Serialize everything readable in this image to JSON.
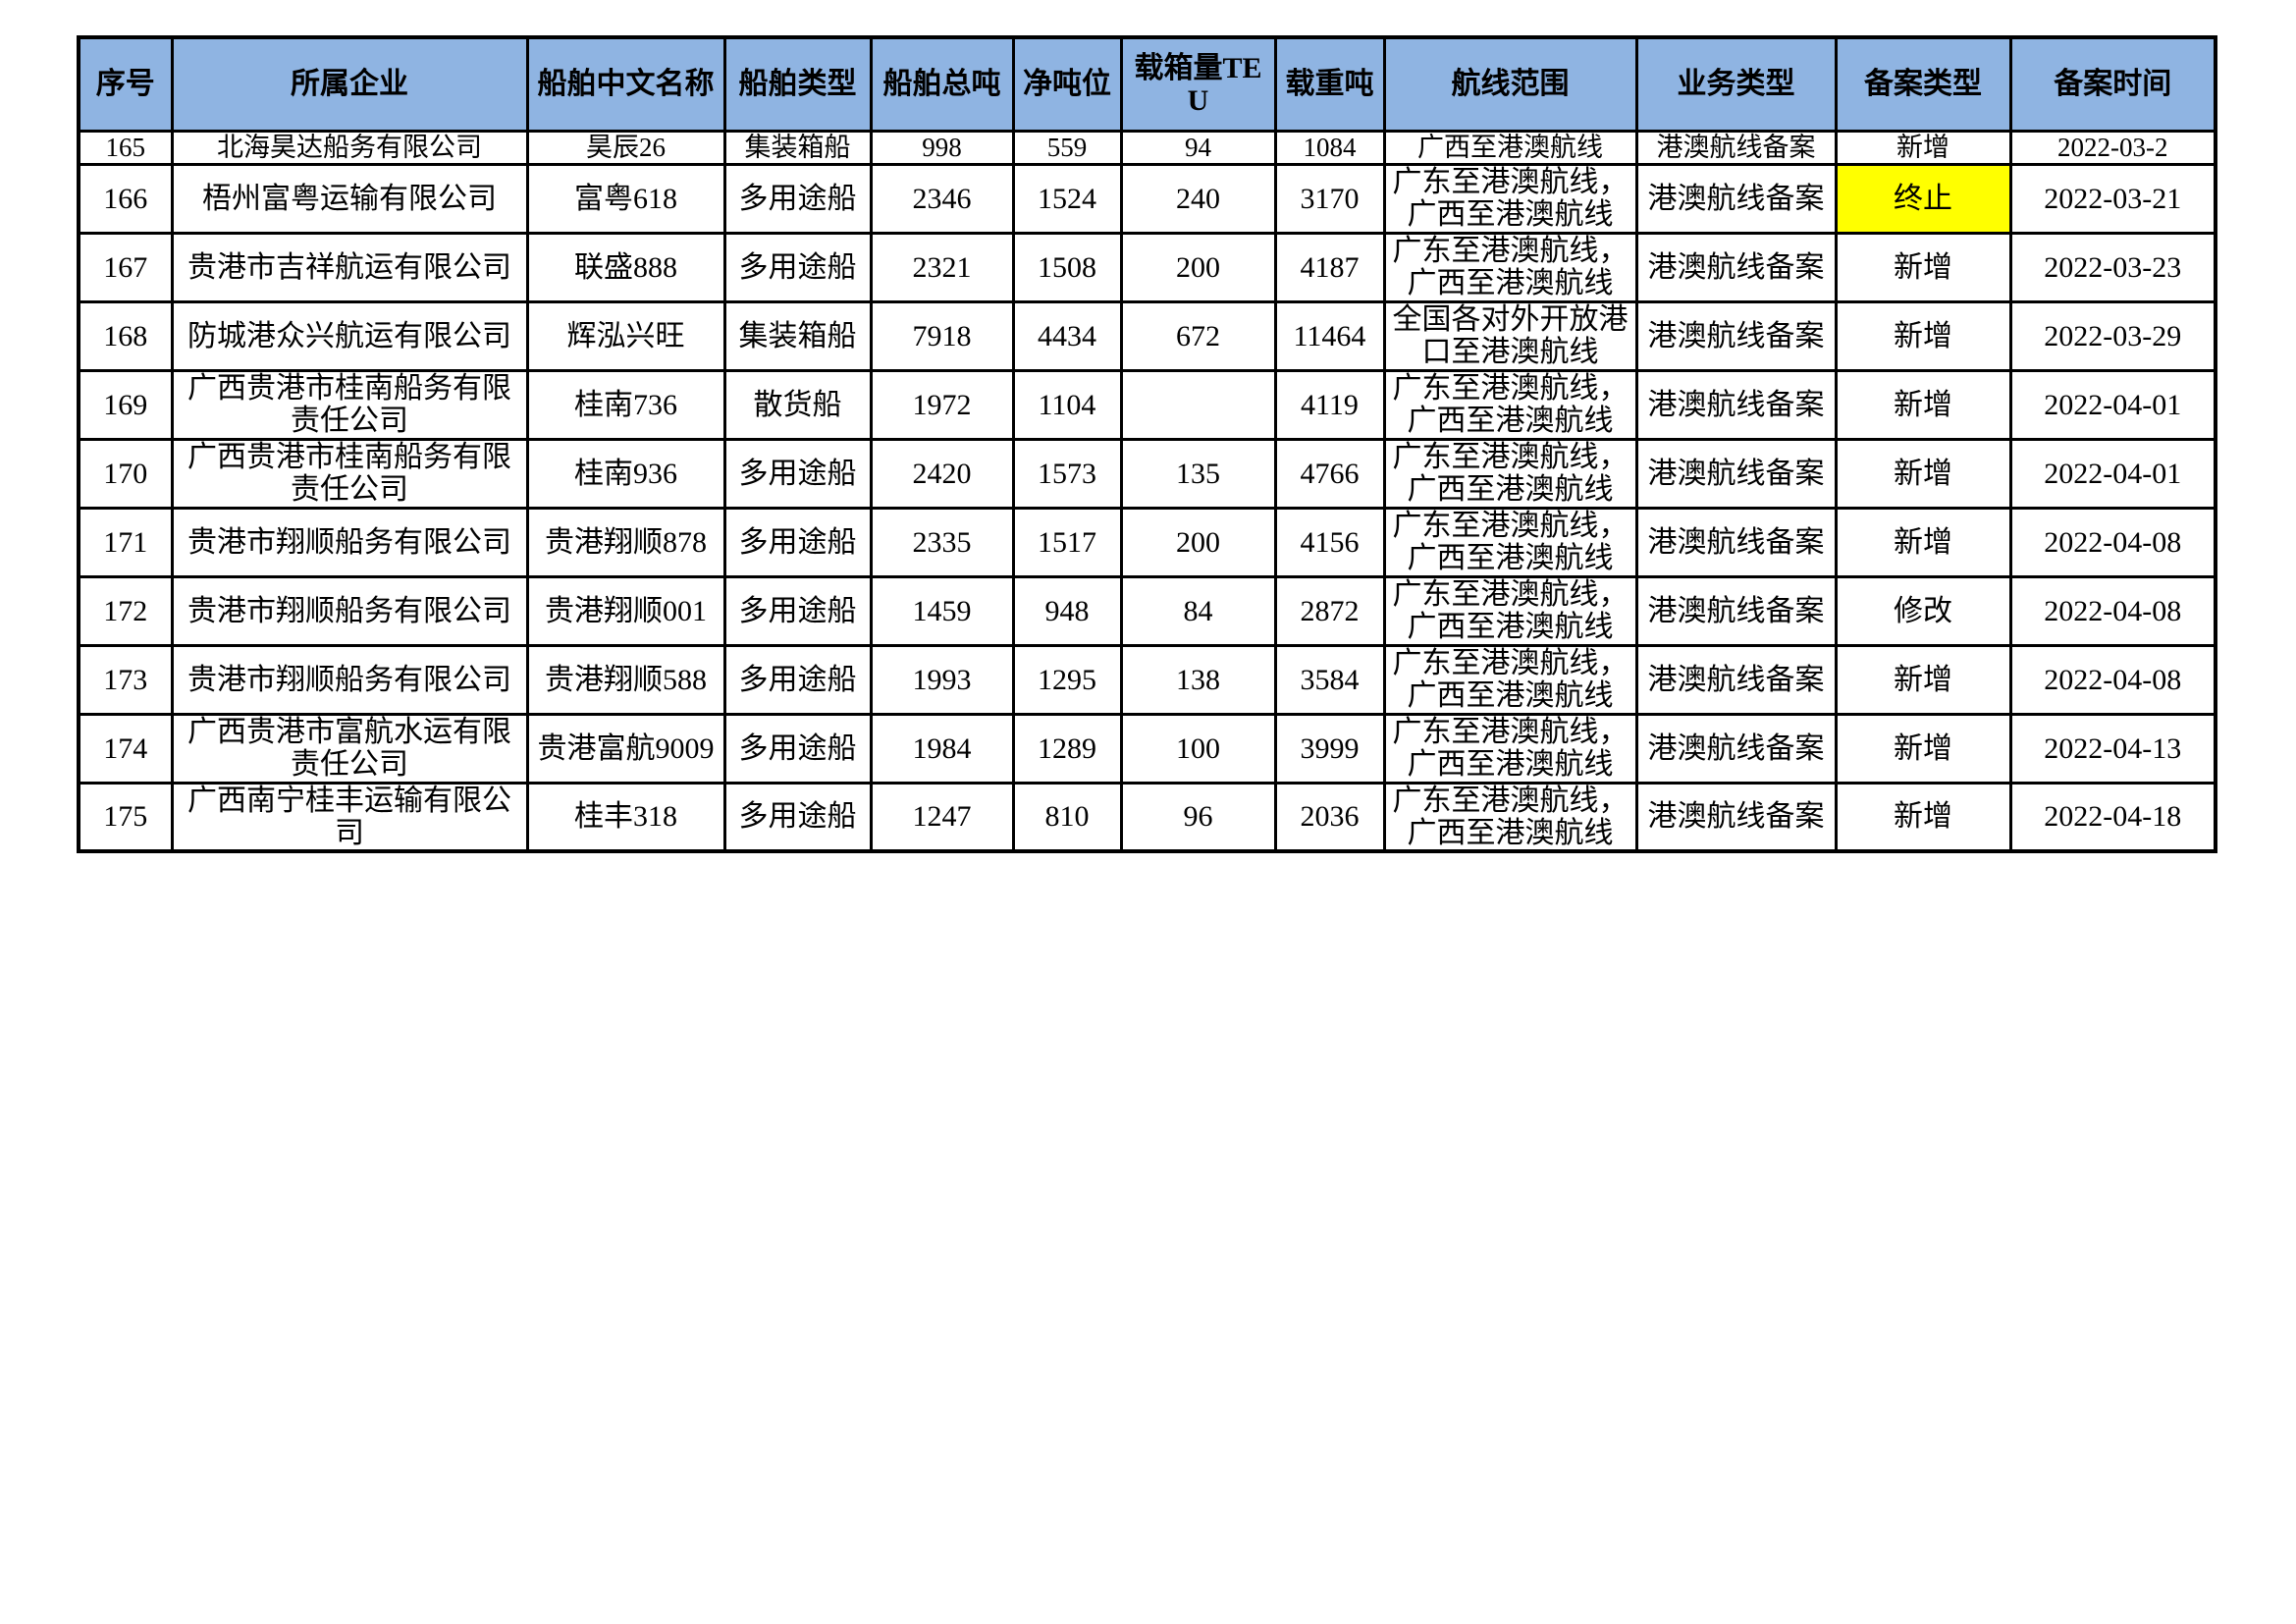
{
  "colors": {
    "header_bg": "#8FB4E2",
    "highlight_bg": "#FFFF00",
    "border": "#000000",
    "text": "#000000"
  },
  "table": {
    "headers": [
      "序号",
      "所属企业",
      "船舶中文名称",
      "船舶类型",
      "船舶总吨",
      "净吨位",
      "载箱量TEU",
      "载重吨",
      "航线范围",
      "业务类型",
      "备案类型",
      "备案时间"
    ],
    "rows": [
      {
        "seq": "165",
        "company": "北海昊达船务有限公司",
        "ship_name": "昊辰26",
        "ship_type": "集装箱船",
        "gross_tonnage": "998",
        "net_tonnage": "559",
        "teu": "94",
        "dwt": "1084",
        "route": "广西至港澳航线",
        "business_type": "港澳航线备案",
        "filing_type": "新增",
        "filing_type_highlight": false,
        "filing_date": "2022-03-2"
      },
      {
        "seq": "166",
        "company": "梧州富粤运输有限公司",
        "ship_name": "富粤618",
        "ship_type": "多用途船",
        "gross_tonnage": "2346",
        "net_tonnage": "1524",
        "teu": "240",
        "dwt": "3170",
        "route": "广东至港澳航线，广西至港澳航线",
        "business_type": "港澳航线备案",
        "filing_type": "终止",
        "filing_type_highlight": true,
        "filing_date": "2022-03-21"
      },
      {
        "seq": "167",
        "company": "贵港市吉祥航运有限公司",
        "ship_name": "联盛888",
        "ship_type": "多用途船",
        "gross_tonnage": "2321",
        "net_tonnage": "1508",
        "teu": "200",
        "dwt": "4187",
        "route": "广东至港澳航线，广西至港澳航线",
        "business_type": "港澳航线备案",
        "filing_type": "新增",
        "filing_type_highlight": false,
        "filing_date": "2022-03-23"
      },
      {
        "seq": "168",
        "company": "防城港众兴航运有限公司",
        "ship_name": "辉泓兴旺",
        "ship_type": "集装箱船",
        "gross_tonnage": "7918",
        "net_tonnage": "4434",
        "teu": "672",
        "dwt": "11464",
        "route": "全国各对外开放港口至港澳航线",
        "business_type": "港澳航线备案",
        "filing_type": "新增",
        "filing_type_highlight": false,
        "filing_date": "2022-03-29"
      },
      {
        "seq": "169",
        "company": "广西贵港市桂南船务有限责任公司",
        "ship_name": "桂南736",
        "ship_type": "散货船",
        "gross_tonnage": "1972",
        "net_tonnage": "1104",
        "teu": "",
        "dwt": "4119",
        "route": "广东至港澳航线，广西至港澳航线",
        "business_type": "港澳航线备案",
        "filing_type": "新增",
        "filing_type_highlight": false,
        "filing_date": "2022-04-01"
      },
      {
        "seq": "170",
        "company": "广西贵港市桂南船务有限责任公司",
        "ship_name": "桂南936",
        "ship_type": "多用途船",
        "gross_tonnage": "2420",
        "net_tonnage": "1573",
        "teu": "135",
        "dwt": "4766",
        "route": "广东至港澳航线，广西至港澳航线",
        "business_type": "港澳航线备案",
        "filing_type": "新增",
        "filing_type_highlight": false,
        "filing_date": "2022-04-01"
      },
      {
        "seq": "171",
        "company": "贵港市翔顺船务有限公司",
        "ship_name": "贵港翔顺878",
        "ship_type": "多用途船",
        "gross_tonnage": "2335",
        "net_tonnage": "1517",
        "teu": "200",
        "dwt": "4156",
        "route": "广东至港澳航线，广西至港澳航线",
        "business_type": "港澳航线备案",
        "filing_type": "新增",
        "filing_type_highlight": false,
        "filing_date": "2022-04-08"
      },
      {
        "seq": "172",
        "company": "贵港市翔顺船务有限公司",
        "ship_name": "贵港翔顺001",
        "ship_type": "多用途船",
        "gross_tonnage": "1459",
        "net_tonnage": "948",
        "teu": "84",
        "dwt": "2872",
        "route": "广东至港澳航线，广西至港澳航线",
        "business_type": "港澳航线备案",
        "filing_type": "修改",
        "filing_type_highlight": false,
        "filing_date": "2022-04-08"
      },
      {
        "seq": "173",
        "company": "贵港市翔顺船务有限公司",
        "ship_name": "贵港翔顺588",
        "ship_type": "多用途船",
        "gross_tonnage": "1993",
        "net_tonnage": "1295",
        "teu": "138",
        "dwt": "3584",
        "route": "广东至港澳航线，广西至港澳航线",
        "business_type": "港澳航线备案",
        "filing_type": "新增",
        "filing_type_highlight": false,
        "filing_date": "2022-04-08"
      },
      {
        "seq": "174",
        "company": "广西贵港市富航水运有限责任公司",
        "ship_name": "贵港富航9009",
        "ship_type": "多用途船",
        "gross_tonnage": "1984",
        "net_tonnage": "1289",
        "teu": "100",
        "dwt": "3999",
        "route": "广东至港澳航线，广西至港澳航线",
        "business_type": "港澳航线备案",
        "filing_type": "新增",
        "filing_type_highlight": false,
        "filing_date": "2022-04-13"
      },
      {
        "seq": "175",
        "company": "广西南宁桂丰运输有限公司",
        "ship_name": "桂丰318",
        "ship_type": "多用途船",
        "gross_tonnage": "1247",
        "net_tonnage": "810",
        "teu": "96",
        "dwt": "2036",
        "route": "广东至港澳航线，广西至港澳航线",
        "business_type": "港澳航线备案",
        "filing_type": "新增",
        "filing_type_highlight": false,
        "filing_date": "2022-04-18"
      }
    ]
  }
}
